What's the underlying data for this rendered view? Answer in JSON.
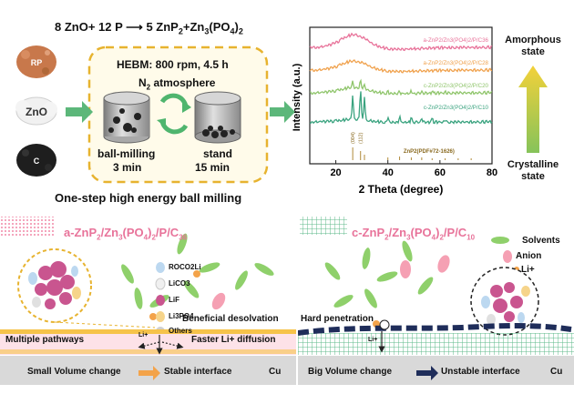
{
  "top": {
    "equation": "8 ZnO+ 12 P  5 ZnP2+Zn3(PO4)2",
    "equation_left": "8 ZnO+ 12 P",
    "equation_right_main": "5 ZnP",
    "equation_right_sub1": "2",
    "equation_right_plus": "+Zn",
    "equation_right_sub2": "3",
    "equation_right_po": "(PO",
    "equation_right_sub3": "4",
    "equation_right_close": ")",
    "equation_right_sub4": "2",
    "reagent_rp": "RP",
    "reagent_zno": "ZnO",
    "reagent_c": "C",
    "hebm": "HEBM: 800 rpm, 4.5 h",
    "atmosphere_n": "N",
    "atmosphere_sub": "2",
    "atmosphere_rest": " atmosphere",
    "ballmill_label": "ball-milling",
    "ballmill_time": "3 min",
    "stand_label": "stand",
    "stand_time": "15 min",
    "caption": "One-step high energy ball milling"
  },
  "chart_data": {
    "type": "line",
    "xlabel": "2 Theta (degree)",
    "ylabel": "Intensity (a.u.)",
    "xlim": [
      10,
      80
    ],
    "xticks": [
      20,
      40,
      60,
      80
    ],
    "series": [
      {
        "name": "a-ZnP2/Zn3(PO4)2/P/C36",
        "color": "#e8739a"
      },
      {
        "name": "a-ZnP2/Zn3(PO4)2/P/C28",
        "color": "#f0a24e"
      },
      {
        "name": "c-ZnP2/Zn3(PO4)2/P/C20",
        "color": "#8fc56b"
      },
      {
        "name": "c-ZnP2/Zn3(PO4)2/P/C10",
        "color": "#3aa37f"
      }
    ],
    "reference": "ZnP2(PDF#72-1626)",
    "peak_labels": [
      "(004)",
      "(112)"
    ],
    "arrow_top": "Amorphous state",
    "arrow_bottom": "Crystalline state"
  },
  "bottom_left": {
    "title_prefix": "a-ZnP",
    "legend": [
      "ROCO2Li",
      "LiCO3",
      "LiF",
      "Li3PO4",
      "Others"
    ],
    "beneficial": "Beneficial desolvation",
    "multiple": "Multiple pathways",
    "faster": "Faster Li+ diffusion",
    "li_label": "Li+",
    "small": "Small Volume change",
    "stable": "Stable interface",
    "cu": "Cu"
  },
  "bottom_right": {
    "title_prefix": "c-ZnP",
    "legend": [
      "Solvents",
      "Anion",
      "Li+"
    ],
    "hard": "Hard penetration",
    "li_label": "Li+",
    "big": "Big Volume change",
    "unstable": "Unstable interface",
    "cu": "Cu"
  }
}
